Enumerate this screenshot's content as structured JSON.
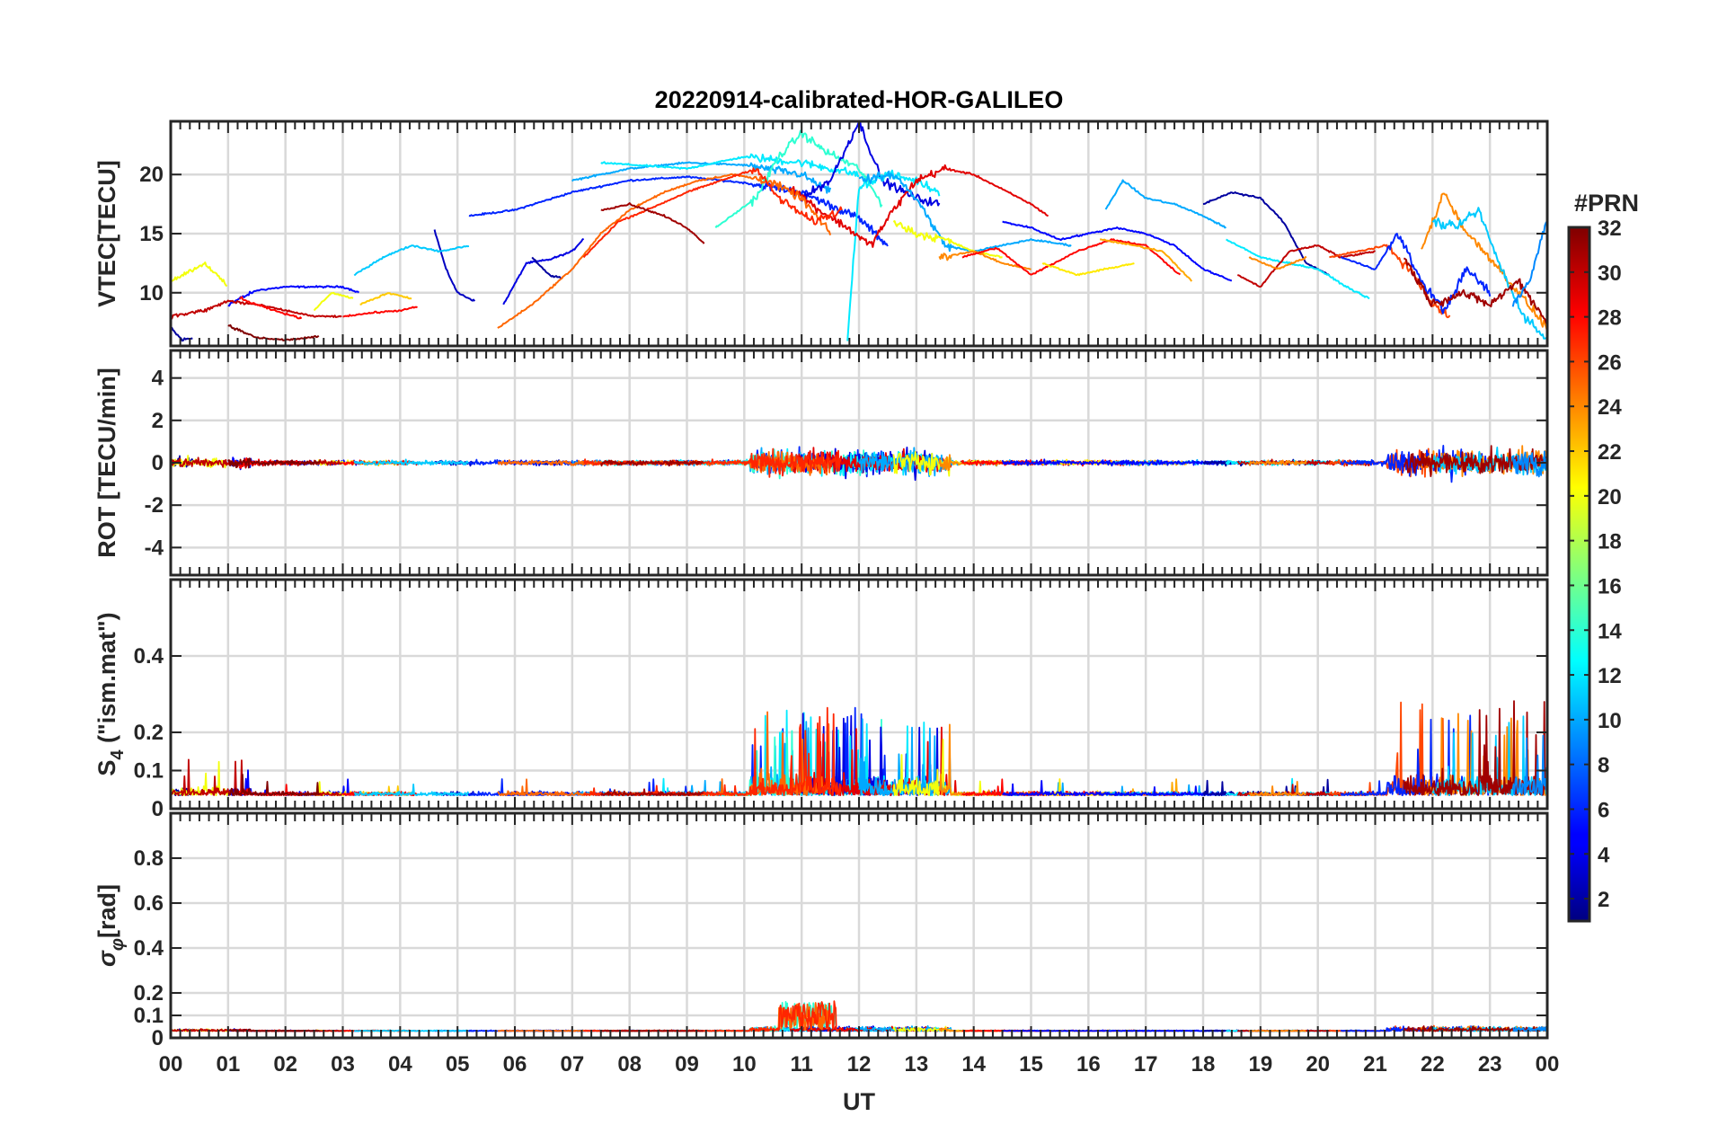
{
  "chart_data": {
    "type": "line",
    "title": "20220914-calibrated-HOR-GALILEO",
    "xlabel": "UT",
    "x_ticks": [
      "00",
      "01",
      "02",
      "03",
      "04",
      "05",
      "06",
      "07",
      "08",
      "09",
      "10",
      "11",
      "12",
      "13",
      "14",
      "15",
      "16",
      "17",
      "18",
      "19",
      "20",
      "21",
      "22",
      "23",
      "00"
    ],
    "x_range_hours": [
      0,
      24
    ],
    "grid": true,
    "colorbar": {
      "title": "#PRN",
      "range": [
        1,
        32
      ],
      "ticks": [
        "32",
        "30",
        "28",
        "26",
        "24",
        "22",
        "20",
        "18",
        "16",
        "14",
        "12",
        "10",
        "8",
        "6",
        "4",
        "2"
      ],
      "colormap": "jet",
      "placement": "right"
    },
    "panels": [
      {
        "name": "vtec",
        "ylabel": "VTEC[TECU]",
        "ylim": [
          5.5,
          24.5
        ],
        "yticks": [
          "20",
          "15",
          "10"
        ],
        "ytick_values": [
          20,
          15,
          10
        ]
      },
      {
        "name": "rot",
        "ylabel": "ROT [TECU/min]",
        "ylim": [
          -5.3,
          5.3
        ],
        "yticks": [
          "4",
          "2",
          "0",
          "-2",
          "-4"
        ],
        "ytick_values": [
          4,
          2,
          0,
          -2,
          -4
        ]
      },
      {
        "name": "s4",
        "ylabel_main": "S",
        "ylabel_sub": "4",
        "ylabel_rest": " (\"ism.mat\")",
        "ylim": [
          0,
          0.6
        ],
        "yticks": [
          "0.4",
          "0.2",
          "0.1",
          "0"
        ],
        "ytick_values": [
          0.4,
          0.2,
          0.1,
          0
        ]
      },
      {
        "name": "sigma_phi",
        "ylabel_main": "σ",
        "ylabel_sub": "φ",
        "ylabel_rest": "[rad]",
        "ylim": [
          0,
          1.0
        ],
        "yticks": [
          "0.8",
          "0.6",
          "0.4",
          "0.2",
          "0.1",
          "0"
        ],
        "ytick_values": [
          0.8,
          0.6,
          0.4,
          0.2,
          0.1,
          0
        ]
      }
    ],
    "series": [
      {
        "prn": 2,
        "vtec": [
          [
            0.0,
            7.0
          ],
          [
            0.2,
            6.0
          ],
          [
            0.4,
            6.2
          ]
        ]
      },
      {
        "prn": 5,
        "vtec": [
          [
            1.0,
            9.0
          ],
          [
            1.5,
            10.2
          ],
          [
            2.0,
            10.5
          ],
          [
            3.0,
            10.5
          ],
          [
            3.3,
            10.0
          ]
        ]
      },
      {
        "prn": 3,
        "vtec": [
          [
            4.6,
            15.3
          ],
          [
            4.8,
            12.0
          ],
          [
            5.0,
            10.0
          ],
          [
            5.3,
            9.3
          ]
        ]
      },
      {
        "prn": 4,
        "vtec": [
          [
            5.8,
            9.0
          ],
          [
            6.2,
            12.5
          ],
          [
            6.6,
            12.8
          ],
          [
            7.0,
            13.5
          ],
          [
            7.2,
            14.6
          ]
        ]
      },
      {
        "prn": 2,
        "vtec": [
          [
            6.3,
            13.0
          ],
          [
            6.6,
            11.5
          ],
          [
            6.8,
            11.3
          ]
        ]
      },
      {
        "prn": 6,
        "vtec": [
          [
            5.2,
            16.5
          ],
          [
            6.0,
            17.0
          ],
          [
            7.0,
            18.5
          ],
          [
            8.0,
            19.5
          ],
          [
            9.0,
            19.8
          ],
          [
            10.0,
            19.3
          ],
          [
            11.0,
            18.5
          ],
          [
            12.0,
            16.3
          ],
          [
            12.5,
            14.0
          ]
        ]
      },
      {
        "prn": 10,
        "vtec": [
          [
            7.0,
            19.5
          ],
          [
            8.0,
            20.5
          ],
          [
            9.0,
            21.0
          ],
          [
            10.0,
            20.8
          ],
          [
            11.0,
            20.0
          ],
          [
            11.5,
            18.5
          ]
        ]
      },
      {
        "prn": 12,
        "vtec": [
          [
            7.5,
            21.0
          ],
          [
            9.0,
            20.5
          ],
          [
            10.0,
            21.5
          ],
          [
            11.0,
            21.0
          ],
          [
            12.0,
            20.0
          ]
        ]
      },
      {
        "prn": 14,
        "vtec": [
          [
            9.5,
            15.5
          ],
          [
            10.2,
            18.0
          ],
          [
            10.6,
            21.5
          ],
          [
            11.0,
            23.5
          ],
          [
            11.4,
            22.0
          ],
          [
            12.0,
            20.5
          ],
          [
            12.4,
            17.5
          ]
        ]
      },
      {
        "prn": 4,
        "vtec": [
          [
            11.0,
            18.0
          ],
          [
            11.5,
            19.5
          ],
          [
            12.0,
            24.5
          ],
          [
            12.4,
            19.5
          ],
          [
            13.0,
            18.0
          ],
          [
            13.4,
            17.5
          ]
        ]
      },
      {
        "prn": 12,
        "vtec": [
          [
            11.8,
            6.0
          ],
          [
            12.0,
            19.0
          ],
          [
            12.5,
            20.0
          ],
          [
            13.0,
            19.5
          ],
          [
            13.4,
            18.5
          ]
        ]
      },
      {
        "prn": 29,
        "vtec": [
          [
            10.8,
            19.0
          ],
          [
            11.3,
            17.0
          ],
          [
            11.8,
            15.5
          ],
          [
            12.2,
            14.0
          ],
          [
            12.6,
            17.0
          ],
          [
            13.0,
            19.5
          ],
          [
            13.5,
            20.5
          ],
          [
            14.0,
            20.0
          ],
          [
            15.0,
            17.5
          ],
          [
            15.3,
            16.5
          ]
        ]
      },
      {
        "prn": 25,
        "vtec": [
          [
            5.7,
            7.0
          ],
          [
            6.3,
            9.0
          ],
          [
            7.0,
            12.0
          ],
          [
            7.5,
            15.0
          ],
          [
            8.0,
            17.0
          ],
          [
            8.6,
            18.5
          ],
          [
            9.2,
            19.5
          ],
          [
            9.8,
            20.0
          ],
          [
            10.4,
            19.5
          ],
          [
            11.0,
            18.0
          ],
          [
            11.5,
            15.0
          ]
        ]
      },
      {
        "prn": 27,
        "vtec": [
          [
            7.2,
            13.0
          ],
          [
            7.8,
            16.0
          ],
          [
            8.3,
            17.0
          ],
          [
            9.0,
            18.5
          ],
          [
            9.6,
            19.5
          ],
          [
            10.2,
            20.5
          ],
          [
            10.6,
            18.0
          ],
          [
            11.2,
            16.0
          ],
          [
            11.7,
            17.0
          ]
        ]
      },
      {
        "prn": 31,
        "vtec": [
          [
            7.5,
            17.0
          ],
          [
            8.0,
            17.5
          ],
          [
            8.6,
            16.5
          ],
          [
            9.0,
            15.5
          ],
          [
            9.3,
            14.2
          ]
        ]
      },
      {
        "prn": 20,
        "vtec": [
          [
            0.0,
            11.0
          ],
          [
            0.6,
            12.5
          ],
          [
            1.0,
            10.5
          ]
        ]
      },
      {
        "prn": 20,
        "vtec": [
          [
            2.5,
            8.5
          ],
          [
            2.8,
            10.0
          ],
          [
            3.2,
            9.5
          ]
        ]
      },
      {
        "prn": 22,
        "vtec": [
          [
            3.3,
            9.0
          ],
          [
            3.8,
            10.0
          ],
          [
            4.2,
            9.5
          ]
        ]
      },
      {
        "prn": 30,
        "vtec": [
          [
            0.0,
            8.0
          ],
          [
            0.6,
            8.5
          ],
          [
            1.0,
            9.3
          ],
          [
            1.5,
            9.0
          ],
          [
            2.0,
            8.5
          ],
          [
            2.5,
            8.0
          ],
          [
            3.0,
            8.0
          ]
        ]
      },
      {
        "prn": 28,
        "vtec": [
          [
            1.2,
            9.5
          ],
          [
            1.8,
            8.5
          ],
          [
            2.3,
            7.8
          ]
        ]
      },
      {
        "prn": 28,
        "vtec": [
          [
            3.0,
            8.0
          ],
          [
            3.5,
            8.3
          ],
          [
            4.0,
            8.5
          ],
          [
            4.3,
            8.8
          ]
        ]
      },
      {
        "prn": 32,
        "vtec": [
          [
            1.0,
            7.2
          ],
          [
            1.5,
            6.2
          ],
          [
            2.0,
            6.0
          ],
          [
            2.6,
            6.3
          ]
        ]
      },
      {
        "prn": 11,
        "vtec": [
          [
            3.2,
            11.5
          ],
          [
            3.7,
            13.0
          ],
          [
            4.2,
            14.0
          ],
          [
            4.7,
            13.5
          ],
          [
            5.2,
            14.0
          ]
        ]
      },
      {
        "prn": 10,
        "vtec": [
          [
            12.0,
            19.5
          ],
          [
            12.6,
            20.0
          ],
          [
            13.0,
            18.0
          ],
          [
            13.5,
            14.0
          ],
          [
            14.0,
            13.5
          ],
          [
            15.0,
            14.5
          ],
          [
            15.7,
            14.0
          ]
        ]
      },
      {
        "prn": 20,
        "vtec": [
          [
            12.6,
            16.0
          ],
          [
            13.0,
            15.0
          ],
          [
            13.5,
            14.5
          ],
          [
            14.0,
            13.5
          ],
          [
            14.5,
            13.0
          ]
        ]
      },
      {
        "prn": 24,
        "vtec": [
          [
            13.4,
            13.0
          ],
          [
            14.0,
            13.5
          ],
          [
            14.5,
            12.5
          ],
          [
            15.0,
            12.0
          ]
        ]
      },
      {
        "prn": 28,
        "vtec": [
          [
            13.8,
            13.0
          ],
          [
            14.4,
            13.8
          ],
          [
            15.0,
            11.5
          ],
          [
            15.8,
            13.5
          ],
          [
            16.4,
            14.5
          ],
          [
            17.0,
            14.0
          ],
          [
            17.6,
            11.5
          ]
        ]
      },
      {
        "prn": 21,
        "vtec": [
          [
            15.2,
            12.5
          ],
          [
            15.8,
            11.5
          ],
          [
            16.3,
            12.0
          ],
          [
            16.8,
            12.5
          ]
        ]
      },
      {
        "prn": 23,
        "vtec": [
          [
            16.2,
            14.5
          ],
          [
            16.8,
            14.0
          ],
          [
            17.3,
            13.5
          ],
          [
            17.8,
            11.0
          ]
        ]
      },
      {
        "prn": 10,
        "vtec": [
          [
            16.3,
            17.0
          ],
          [
            16.6,
            19.5
          ],
          [
            17.0,
            18.0
          ],
          [
            17.5,
            17.5
          ],
          [
            18.0,
            16.5
          ],
          [
            18.4,
            15.5
          ]
        ]
      },
      {
        "prn": 5,
        "vtec": [
          [
            14.5,
            16.0
          ],
          [
            15.0,
            15.5
          ],
          [
            15.5,
            14.5
          ],
          [
            16.0,
            15.0
          ],
          [
            16.5,
            15.5
          ],
          [
            17.0,
            15.0
          ],
          [
            17.5,
            14.0
          ],
          [
            18.0,
            12.0
          ],
          [
            18.5,
            11.0
          ]
        ]
      },
      {
        "prn": 2,
        "vtec": [
          [
            18.0,
            17.5
          ],
          [
            18.5,
            18.5
          ],
          [
            19.0,
            18.0
          ],
          [
            19.4,
            16.0
          ],
          [
            19.8,
            12.5
          ],
          [
            20.2,
            11.5
          ]
        ]
      },
      {
        "prn": 12,
        "vtec": [
          [
            18.4,
            14.5
          ],
          [
            19.0,
            13.0
          ],
          [
            19.5,
            12.5
          ],
          [
            20.0,
            12.0
          ],
          [
            20.5,
            10.5
          ],
          [
            20.9,
            9.5
          ]
        ]
      },
      {
        "prn": 30,
        "vtec": [
          [
            18.6,
            11.5
          ],
          [
            19.0,
            10.5
          ],
          [
            19.5,
            13.5
          ],
          [
            20.0,
            14.0
          ],
          [
            20.4,
            13.0
          ],
          [
            21.0,
            13.5
          ]
        ]
      },
      {
        "prn": 24,
        "vtec": [
          [
            18.8,
            13.0
          ],
          [
            19.3,
            12.0
          ],
          [
            19.8,
            13.0
          ]
        ]
      },
      {
        "prn": 26,
        "vtec": [
          [
            20.2,
            13.0
          ],
          [
            20.7,
            13.5
          ],
          [
            21.2,
            14.0
          ],
          [
            21.6,
            12.0
          ],
          [
            22.0,
            9.0
          ],
          [
            22.3,
            8.0
          ]
        ]
      },
      {
        "prn": 6,
        "vtec": [
          [
            20.4,
            13.0
          ],
          [
            21.0,
            12.0
          ],
          [
            21.4,
            15.0
          ],
          [
            21.8,
            11.0
          ],
          [
            22.2,
            8.5
          ],
          [
            22.6,
            12.0
          ],
          [
            23.0,
            10.0
          ]
        ]
      },
      {
        "prn": 24,
        "vtec": [
          [
            21.8,
            13.5
          ],
          [
            22.2,
            18.5
          ],
          [
            22.6,
            15.0
          ],
          [
            23.0,
            13.0
          ],
          [
            23.5,
            10.0
          ],
          [
            24.0,
            7.0
          ]
        ]
      },
      {
        "prn": 11,
        "vtec": [
          [
            22.0,
            16.0
          ],
          [
            22.4,
            15.5
          ],
          [
            22.8,
            17.0
          ],
          [
            23.2,
            12.0
          ],
          [
            23.6,
            8.0
          ],
          [
            24.0,
            6.0
          ]
        ]
      },
      {
        "prn": 31,
        "vtec": [
          [
            21.5,
            13.0
          ],
          [
            22.0,
            9.0
          ],
          [
            22.5,
            10.0
          ],
          [
            23.0,
            9.0
          ],
          [
            23.5,
            11.0
          ],
          [
            24.0,
            7.5
          ]
        ]
      },
      {
        "prn": 9,
        "vtec": [
          [
            23.4,
            9.0
          ],
          [
            23.7,
            11.0
          ],
          [
            24.0,
            16.5
          ]
        ]
      }
    ]
  }
}
